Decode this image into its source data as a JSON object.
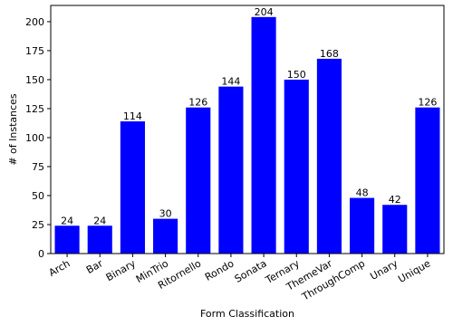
{
  "chart_data": {
    "type": "bar",
    "title": "",
    "xlabel": "Form Classification",
    "ylabel": "# of Instances",
    "categories": [
      "Arch",
      "Bar",
      "Binary",
      "MinTrio",
      "Ritornello",
      "Rondo",
      "Sonata",
      "Ternary",
      "ThemeVar",
      "ThroughComp",
      "Unary",
      "Unique"
    ],
    "values": [
      24,
      24,
      114,
      30,
      126,
      144,
      204,
      150,
      168,
      48,
      42,
      126
    ],
    "data_labels": [
      "24",
      "24",
      "114",
      "30",
      "126",
      "144",
      "204",
      "150",
      "168",
      "48",
      "42",
      "126"
    ],
    "ylim": [
      0,
      214
    ],
    "yticks": [
      0,
      25,
      50,
      75,
      100,
      125,
      150,
      175,
      200
    ],
    "ytick_labels": [
      "0",
      "25",
      "50",
      "75",
      "100",
      "125",
      "150",
      "175",
      "200"
    ],
    "bar_color": "#0000ff",
    "grid": false,
    "legend": "none"
  }
}
